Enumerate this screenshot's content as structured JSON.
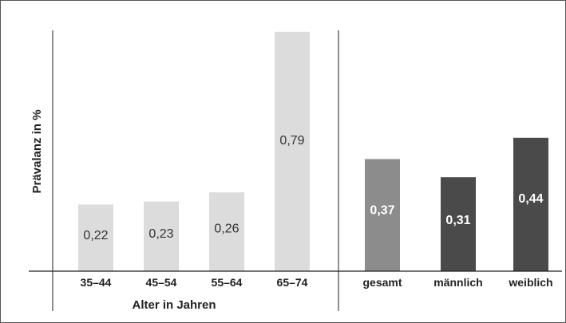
{
  "chart_data": {
    "type": "bar",
    "ylabel": "Prävalanz in %",
    "grid": false,
    "groups": [
      {
        "xlabel": "Alter in Jahren",
        "categories": [
          "35–44",
          "45–54",
          "55–64",
          "65–74"
        ],
        "values": [
          0.22,
          0.23,
          0.26,
          0.79
        ],
        "labels": [
          "0,22",
          "0,23",
          "0,26",
          "0,79"
        ],
        "colors": [
          "#dcdcdc",
          "#dcdcdc",
          "#dcdcdc",
          "#dcdcdc"
        ],
        "label_style": "light"
      },
      {
        "xlabel": "",
        "categories": [
          "gesamt",
          "männlich",
          "weiblich"
        ],
        "values": [
          0.37,
          0.31,
          0.44
        ],
        "labels": [
          "0,37",
          "0,31",
          "0,44"
        ],
        "colors": [
          "#8c8c8c",
          "#4a4a4a",
          "#4a4a4a"
        ],
        "label_style": "dark"
      }
    ]
  }
}
